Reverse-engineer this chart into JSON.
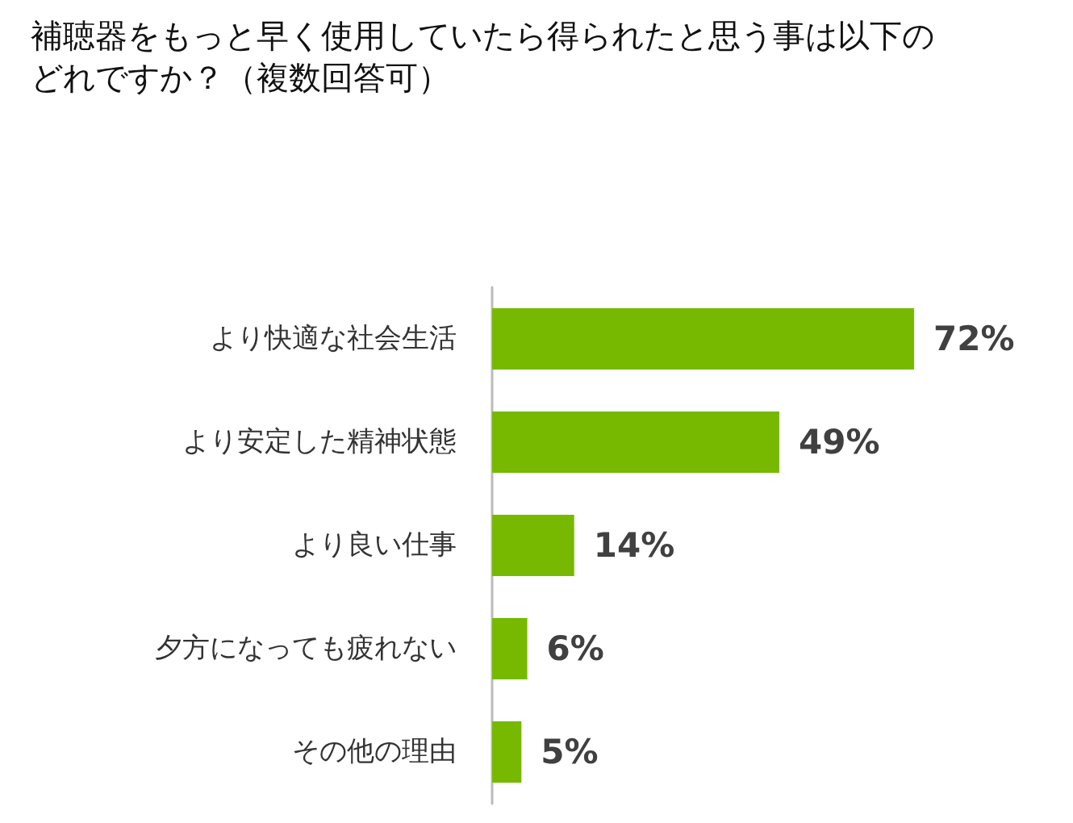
{
  "chart_data": {
    "type": "bar",
    "orientation": "horizontal",
    "title": "補聴器をもっと早く使用していたら得られたと思う事は以下のどれですか？（複数回答可）",
    "categories": [
      "より快適な社会生活",
      "より安定した精神状態",
      "より良い仕事",
      "夕方になっても疲れない",
      "その他の理由"
    ],
    "values": [
      72,
      49,
      14,
      6,
      5
    ],
    "color": "#76b900",
    "value_labels": [
      "72%",
      "49%",
      "14%",
      "6%",
      "5%"
    ]
  }
}
